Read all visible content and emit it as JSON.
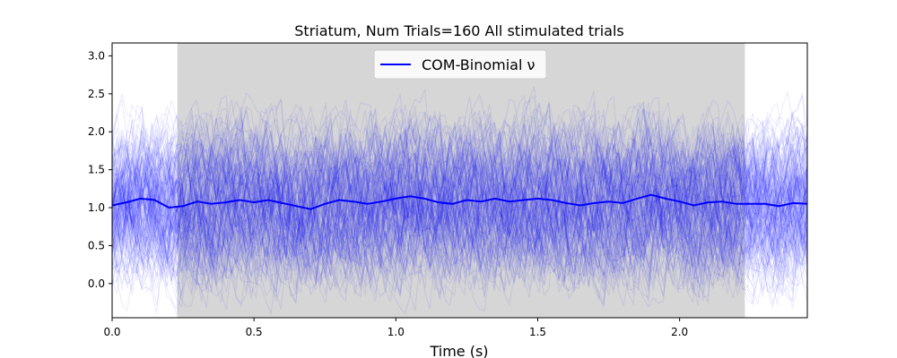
{
  "chart_data": {
    "type": "line",
    "title": "Striatum, Num Trials=160 All stimulated trials",
    "xlabel": "Time (s)",
    "ylabel": "",
    "xlim": [
      0.0,
      2.45
    ],
    "ylim": [
      -0.45,
      3.17
    ],
    "xticks": [
      0.0,
      0.5,
      1.0,
      1.5,
      2.0
    ],
    "xtick_labels": [
      "0.0",
      "0.5",
      "1.0",
      "1.5",
      "2.0"
    ],
    "yticks": [
      0.0,
      0.5,
      1.0,
      1.5,
      2.0,
      2.5,
      3.0
    ],
    "ytick_labels": [
      "0.0",
      "0.5",
      "1.0",
      "1.5",
      "2.0",
      "2.5",
      "3.0"
    ],
    "stimulation_period": {
      "start": 0.23,
      "end": 2.23,
      "color": "#d6d6d6"
    },
    "trial_count": 160,
    "trial_color": "#0000ff",
    "mean_color": "#0000ff",
    "legend": {
      "position": "top-center",
      "entries": [
        "COM-Binomial ν"
      ]
    },
    "series": [
      {
        "name": "COM-Binomial ν",
        "x": [
          0.0,
          0.05,
          0.1,
          0.15,
          0.2,
          0.25,
          0.3,
          0.35,
          0.4,
          0.45,
          0.5,
          0.55,
          0.6,
          0.65,
          0.7,
          0.75,
          0.8,
          0.85,
          0.9,
          0.95,
          1.0,
          1.05,
          1.1,
          1.15,
          1.2,
          1.25,
          1.3,
          1.35,
          1.4,
          1.45,
          1.5,
          1.55,
          1.6,
          1.65,
          1.7,
          1.75,
          1.8,
          1.85,
          1.9,
          1.95,
          2.0,
          2.05,
          2.1,
          2.15,
          2.2,
          2.25,
          2.3,
          2.35,
          2.4,
          2.45
        ],
        "values": [
          1.03,
          1.07,
          1.12,
          1.1,
          1.0,
          1.02,
          1.08,
          1.05,
          1.07,
          1.1,
          1.07,
          1.1,
          1.06,
          1.02,
          0.98,
          1.05,
          1.1,
          1.08,
          1.05,
          1.08,
          1.12,
          1.15,
          1.12,
          1.07,
          1.05,
          1.1,
          1.08,
          1.12,
          1.08,
          1.1,
          1.12,
          1.1,
          1.06,
          1.03,
          1.06,
          1.08,
          1.06,
          1.12,
          1.17,
          1.12,
          1.08,
          1.03,
          1.07,
          1.08,
          1.05,
          1.05,
          1.05,
          1.02,
          1.06,
          1.05
        ]
      }
    ]
  }
}
